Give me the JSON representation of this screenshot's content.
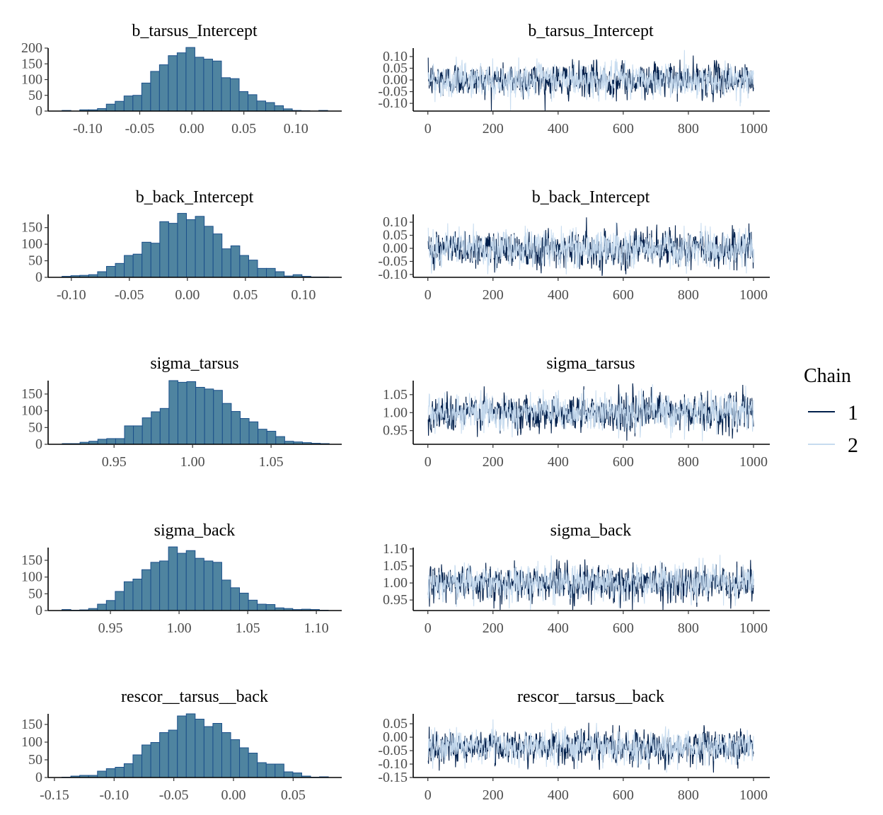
{
  "chart_data": [
    {
      "type": "bar",
      "panel": "histogram",
      "title": "b_tarsus_Intercept",
      "bin_range": [
        -0.1246,
        0.1305
      ],
      "values": [
        2,
        0,
        4,
        4,
        8,
        22,
        31,
        48,
        50,
        89,
        126,
        147,
        176,
        185,
        202,
        171,
        165,
        159,
        106,
        103,
        62,
        52,
        32,
        27,
        17,
        7,
        2,
        1,
        0,
        2
      ],
      "xlim": [
        -0.138,
        0.144
      ],
      "ylim": [
        0,
        200
      ],
      "xticks": [
        "-0.10",
        "-0.05",
        "0.00",
        "0.05",
        "0.10"
      ],
      "xtick_values": [
        -0.1,
        -0.05,
        0,
        0.05,
        0.1
      ],
      "yticks": [
        "0",
        "50",
        "100",
        "150",
        "200"
      ],
      "ytick_values": [
        0,
        50,
        100,
        150,
        200
      ]
    },
    {
      "type": "line",
      "panel": "trace",
      "title": "b_tarsus_Intercept",
      "x_range": [
        1,
        1000
      ],
      "xlim": [
        -45,
        1050
      ],
      "ylim": [
        -0.133,
        0.136
      ],
      "xticks": [
        "0",
        "200",
        "400",
        "600",
        "800",
        "1000"
      ],
      "xtick_values": [
        0,
        200,
        400,
        600,
        800,
        1000
      ],
      "yticks": [
        "0.10",
        "0.05",
        "0.00",
        "-0.05",
        "-0.10"
      ],
      "ytick_values": [
        0.1,
        0.05,
        0,
        -0.05,
        -0.1
      ],
      "series": [
        {
          "name": "1",
          "mean": 0.0,
          "sd": 0.035
        },
        {
          "name": "2",
          "mean": 0.0,
          "sd": 0.035
        }
      ]
    },
    {
      "type": "bar",
      "panel": "histogram",
      "title": "b_back_Intercept",
      "bin_range": [
        -0.108,
        0.1217
      ],
      "values": [
        3,
        5,
        6,
        8,
        17,
        33,
        42,
        66,
        70,
        106,
        103,
        168,
        163,
        193,
        174,
        184,
        154,
        131,
        86,
        95,
        66,
        52,
        27,
        27,
        17,
        4,
        8,
        3,
        1,
        1
      ],
      "xlim": [
        -0.12,
        0.133
      ],
      "ylim": [
        0,
        190
      ],
      "xticks": [
        "-0.10",
        "-0.05",
        "0.00",
        "0.05",
        "0.10"
      ],
      "xtick_values": [
        -0.1,
        -0.05,
        0,
        0.05,
        0.1
      ],
      "yticks": [
        "0",
        "50",
        "100",
        "150"
      ],
      "ytick_values": [
        0,
        50,
        100,
        150
      ]
    },
    {
      "type": "line",
      "panel": "trace",
      "title": "b_back_Intercept",
      "x_range": [
        1,
        1000
      ],
      "xlim": [
        -45,
        1050
      ],
      "ylim": [
        -0.111,
        0.13
      ],
      "xticks": [
        "0",
        "200",
        "400",
        "600",
        "800",
        "1000"
      ],
      "xtick_values": [
        0,
        200,
        400,
        600,
        800,
        1000
      ],
      "yticks": [
        "0.10",
        "0.05",
        "0.00",
        "-0.05",
        "-0.10"
      ],
      "ytick_values": [
        0.1,
        0.05,
        0,
        -0.05,
        -0.1
      ],
      "series": [
        {
          "name": "1",
          "mean": 0.0,
          "sd": 0.035
        },
        {
          "name": "2",
          "mean": 0.0,
          "sd": 0.035
        }
      ]
    },
    {
      "type": "bar",
      "panel": "histogram",
      "title": "sigma_tarsus",
      "bin_range": [
        0.917,
        1.087
      ],
      "values": [
        2,
        2,
        6,
        9,
        15,
        17,
        17,
        55,
        55,
        79,
        97,
        107,
        190,
        185,
        187,
        170,
        165,
        161,
        122,
        98,
        77,
        67,
        45,
        39,
        23,
        9,
        7,
        5,
        3,
        2
      ],
      "xlim": [
        0.908,
        1.095
      ],
      "ylim": [
        0,
        190
      ],
      "xticks": [
        "0.95",
        "1.00",
        "1.05"
      ],
      "xtick_values": [
        0.95,
        1.0,
        1.05
      ],
      "yticks": [
        "0",
        "50",
        "100",
        "150"
      ],
      "ytick_values": [
        0,
        50,
        100,
        150
      ]
    },
    {
      "type": "line",
      "panel": "trace",
      "title": "sigma_tarsus",
      "x_range": [
        1,
        1000
      ],
      "xlim": [
        -45,
        1050
      ],
      "ylim": [
        0.912,
        1.089
      ],
      "xticks": [
        "0",
        "200",
        "400",
        "600",
        "800",
        "1000"
      ],
      "xtick_values": [
        0,
        200,
        400,
        600,
        800,
        1000
      ],
      "yticks": [
        "1.05",
        "1.00",
        "0.95"
      ],
      "ytick_values": [
        1.05,
        1.0,
        0.95
      ],
      "series": [
        {
          "name": "1",
          "mean": 1.0,
          "sd": 0.025
        },
        {
          "name": "2",
          "mean": 1.0,
          "sd": 0.025
        }
      ]
    },
    {
      "type": "bar",
      "panel": "histogram",
      "title": "sigma_back",
      "bin_range": [
        0.9147,
        1.1087
      ],
      "values": [
        3,
        1,
        2,
        6,
        19,
        30,
        57,
        86,
        94,
        122,
        144,
        148,
        190,
        171,
        179,
        156,
        148,
        144,
        91,
        68,
        52,
        31,
        19,
        18,
        8,
        6,
        3,
        4,
        3,
        1
      ],
      "xlim": [
        0.9046,
        1.1185
      ],
      "ylim": [
        0,
        188
      ],
      "xticks": [
        "0.95",
        "1.00",
        "1.05",
        "1.10"
      ],
      "xtick_values": [
        0.95,
        1.0,
        1.05,
        1.1
      ],
      "yticks": [
        "0",
        "50",
        "100",
        "150"
      ],
      "ytick_values": [
        0,
        50,
        100,
        150
      ]
    },
    {
      "type": "line",
      "panel": "trace",
      "title": "sigma_back",
      "x_range": [
        1,
        1000
      ],
      "xlim": [
        -45,
        1050
      ],
      "ylim": [
        0.919,
        1.104
      ],
      "xticks": [
        "0",
        "200",
        "400",
        "600",
        "800",
        "1000"
      ],
      "xtick_values": [
        0,
        200,
        400,
        600,
        800,
        1000
      ],
      "yticks": [
        "1.10",
        "1.05",
        "1.00",
        "0.95"
      ],
      "ytick_values": [
        1.1,
        1.05,
        1.0,
        0.95
      ],
      "series": [
        {
          "name": "1",
          "mean": 1.0,
          "sd": 0.025
        },
        {
          "name": "2",
          "mean": 1.0,
          "sd": 0.025
        }
      ]
    },
    {
      "type": "bar",
      "panel": "histogram",
      "title": "rescor__tarsus__back",
      "bin_range": [
        -0.1437,
        0.0795
      ],
      "values": [
        1,
        4,
        6,
        6,
        18,
        25,
        29,
        39,
        64,
        92,
        99,
        127,
        134,
        174,
        180,
        165,
        144,
        153,
        127,
        107,
        84,
        69,
        42,
        38,
        38,
        16,
        13,
        4,
        1,
        2
      ],
      "xlim": [
        -0.1553,
        0.0907
      ],
      "ylim": [
        0,
        180
      ],
      "xticks": [
        "-0.15",
        "-0.10",
        "-0.05",
        "0.00",
        "0.05"
      ],
      "xtick_values": [
        -0.15,
        -0.1,
        -0.05,
        0,
        0.05
      ],
      "yticks": [
        "0",
        "50",
        "100",
        "150"
      ],
      "ytick_values": [
        0,
        50,
        100,
        150
      ]
    },
    {
      "type": "line",
      "panel": "trace",
      "title": "rescor__tarsus__back",
      "x_range": [
        1,
        1000
      ],
      "xlim": [
        -45,
        1050
      ],
      "ylim": [
        -0.15,
        0.087
      ],
      "xticks": [
        "0",
        "200",
        "400",
        "600",
        "800",
        "1000"
      ],
      "xtick_values": [
        0,
        200,
        400,
        600,
        800,
        1000
      ],
      "yticks": [
        "0.05",
        "0.00",
        "-0.05",
        "-0.10",
        "-0.15"
      ],
      "ytick_values": [
        0.05,
        0,
        -0.05,
        -0.1,
        -0.15
      ],
      "series": [
        {
          "name": "1",
          "mean": -0.035,
          "sd": 0.03
        },
        {
          "name": "2",
          "mean": -0.035,
          "sd": 0.03
        }
      ]
    }
  ],
  "legend": {
    "title": "Chain",
    "items": [
      {
        "label": "1",
        "color": "#011f4b"
      },
      {
        "label": "2",
        "color": "#c6dbef"
      }
    ],
    "placement": "right"
  },
  "colors": {
    "hist_fill": "#4f84a0",
    "hist_border": "#1b4f8a",
    "chain1": "#011f4b",
    "chain2": "#c6dbef"
  }
}
